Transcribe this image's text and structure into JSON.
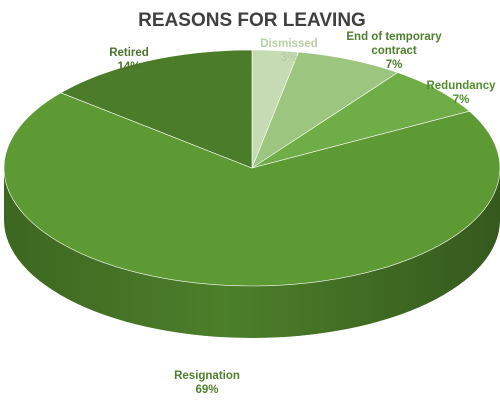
{
  "chart_data": {
    "type": "pie",
    "title": "REASONS FOR LEAVING",
    "title_color": "#404040",
    "start_angle": "top, clockwise",
    "slices": [
      {
        "label": "Dismissed",
        "value": 3,
        "value_label": "3%",
        "color": "#c5dbb4",
        "label_color": "#b7cfa7"
      },
      {
        "label": "End of temporary contract",
        "value": 7,
        "value_label": "7%",
        "color": "#9cc57f",
        "label_color": "#4f7f2c"
      },
      {
        "label": "Redundancy",
        "value": 7,
        "value_label": "7%",
        "color": "#6fae47",
        "label_color": "#4f8f2c"
      },
      {
        "label": "Resignation",
        "value": 69,
        "value_label": "69%",
        "color": "#5e9a34",
        "label_color": "#4f7f2c"
      },
      {
        "label": "Retired",
        "value": 14,
        "value_label": "14%",
        "color": "#4b7c2a",
        "label_color": "#4a7429"
      }
    ]
  }
}
